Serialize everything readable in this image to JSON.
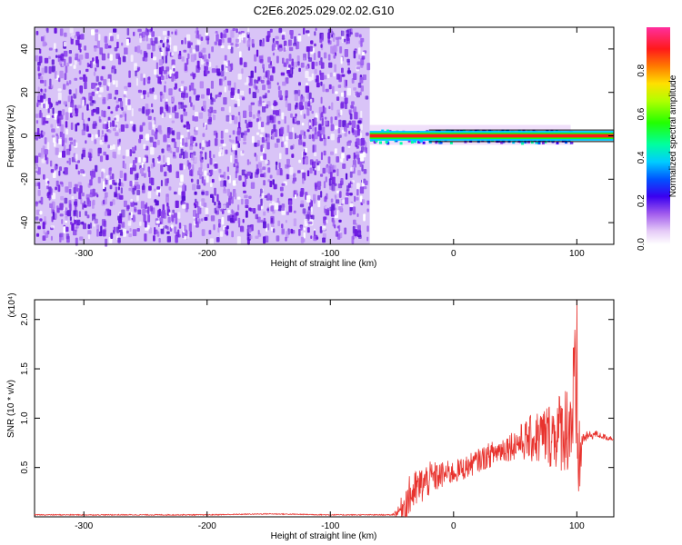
{
  "title": "C2E6.2025.029.02.02.G10",
  "colors": {
    "spectrogram_noise": "#7a2ae6",
    "snr_line": "#e8332e",
    "frame": "#000000"
  },
  "chart_data": [
    {
      "type": "heatmap",
      "title": "C2E6.2025.029.02.02.G10",
      "xlabel": "Height of straight line (km)",
      "ylabel": "Frequency (Hz)",
      "xlim": [
        -340,
        130
      ],
      "ylim": [
        -50,
        50
      ],
      "xticks": [
        "-300",
        "-200",
        "-100",
        "0",
        "100"
      ],
      "yticks": [
        "-40",
        "-20",
        "0",
        "20",
        "40"
      ],
      "noise_region": {
        "x": [
          -340,
          -68
        ],
        "y": [
          -50,
          50
        ],
        "level": 0.05
      },
      "signal_band": {
        "x_start": -68,
        "x_end": 130,
        "center_frequency": 0,
        "core_halfwidth": 1,
        "fringe_start": -68,
        "fringe_end": 95,
        "core_level": 0.95
      },
      "colorbar": {
        "label": "Normalized spectral amplitude",
        "range": [
          0,
          1
        ],
        "ticks": [
          "0.0",
          "0.2",
          "0.4",
          "0.6",
          "0.8"
        ]
      }
    },
    {
      "type": "line",
      "xlabel": "Height of straight line (km)",
      "ylabel": "SNR (10 * v/v)",
      "multiplier": "(x10⁴)",
      "xlim": [
        -340,
        130
      ],
      "ylim": [
        0,
        2.2
      ],
      "xticks": [
        "-300",
        "-200",
        "-100",
        "0",
        "100"
      ],
      "yticks": [
        "0.5",
        "1.0",
        "1.5",
        "2.0"
      ],
      "series": [
        {
          "x": [
            -340,
            -300,
            -250,
            -200,
            -150,
            -100,
            -60,
            -50,
            -45,
            -40,
            -35,
            -30,
            -25,
            -20,
            -15,
            -10,
            -5,
            0,
            10,
            20,
            30,
            40,
            50,
            60,
            70,
            80,
            85,
            90,
            95,
            98,
            100,
            102,
            105,
            110,
            115,
            120,
            125,
            130
          ],
          "y": [
            0.02,
            0.02,
            0.02,
            0.02,
            0.03,
            0.02,
            0.02,
            0.02,
            0.05,
            0.12,
            0.22,
            0.28,
            0.33,
            0.38,
            0.4,
            0.42,
            0.44,
            0.45,
            0.5,
            0.57,
            0.63,
            0.69,
            0.74,
            0.78,
            0.81,
            0.84,
            0.86,
            0.9,
            0.95,
            1.2,
            0.8,
            0.55,
            0.8,
            0.82,
            0.84,
            0.82,
            0.8,
            0.8
          ],
          "spread": [
            0.005,
            0.005,
            0.005,
            0.005,
            0.005,
            0.005,
            0.005,
            0.005,
            0.05,
            0.18,
            0.22,
            0.2,
            0.2,
            0.18,
            0.16,
            0.14,
            0.13,
            0.12,
            0.12,
            0.12,
            0.13,
            0.14,
            0.16,
            0.22,
            0.3,
            0.35,
            0.4,
            0.45,
            0.55,
            0.9,
            0.6,
            0.45,
            0.06,
            0.05,
            0.04,
            0.03,
            0.03,
            0.03
          ],
          "peak": {
            "x": 100,
            "y": 2.2
          }
        }
      ]
    }
  ]
}
